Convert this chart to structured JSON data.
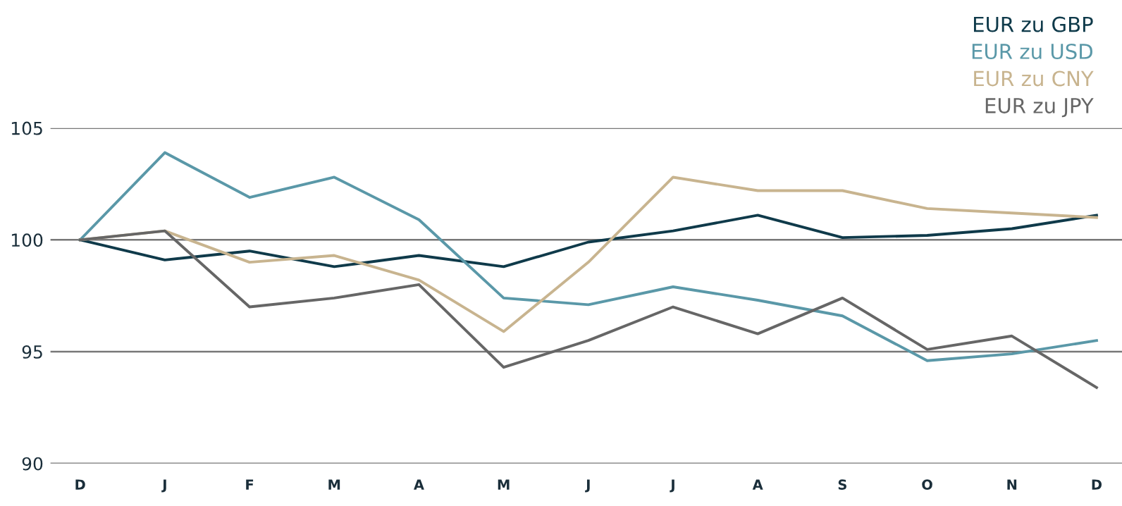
{
  "chart_data": {
    "type": "line",
    "categories": [
      "D",
      "J",
      "F",
      "M",
      "A",
      "M",
      "J",
      "J",
      "A",
      "S",
      "O",
      "N",
      "D"
    ],
    "series": [
      {
        "name": "EUR zu GBP",
        "color": "#0f3a4a",
        "values": [
          100,
          99.1,
          99.5,
          98.8,
          99.3,
          98.8,
          99.9,
          100.4,
          101.1,
          100.1,
          100.2,
          100.5,
          101.1
        ]
      },
      {
        "name": "EUR zu USD",
        "color": "#5a98a8",
        "values": [
          100,
          103.9,
          101.9,
          102.8,
          100.9,
          97.4,
          97.1,
          97.9,
          97.3,
          96.6,
          94.6,
          94.9,
          95.5
        ]
      },
      {
        "name": "EUR zu CNY",
        "color": "#c8b48f",
        "values": [
          100,
          100.4,
          99.0,
          99.3,
          98.2,
          95.9,
          99.0,
          102.8,
          102.2,
          102.2,
          101.4,
          101.2,
          101.0
        ]
      },
      {
        "name": "EUR zu JPY",
        "color": "#666666",
        "values": [
          100,
          100.4,
          97.0,
          97.4,
          98.0,
          94.3,
          95.5,
          97.0,
          95.8,
          97.4,
          95.1,
          95.7,
          93.4
        ]
      }
    ],
    "ylim": [
      90,
      105
    ],
    "yticks": [
      90,
      95,
      100,
      105
    ],
    "grid": "y",
    "legend": "top right",
    "marker": "none",
    "line_style": "solid"
  }
}
